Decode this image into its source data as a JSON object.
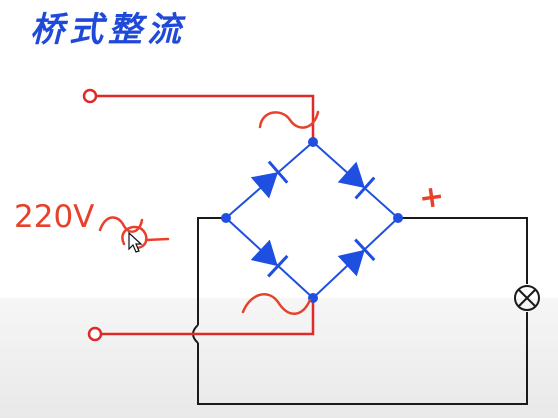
{
  "title": "桥式整流",
  "labels": {
    "voltage": "220V",
    "plus": "+"
  },
  "icons": {
    "cursor": "mouse-pointer-icon",
    "lamp": "lamp-icon",
    "diode": "diode-icon"
  },
  "colors": {
    "title": "#1f49d8",
    "annotation": "#e8412b",
    "bridge": "#1f4fe0",
    "wire": "#1a1a1a",
    "input_wire": "#e02a2a"
  }
}
